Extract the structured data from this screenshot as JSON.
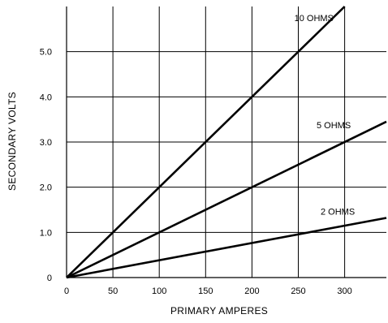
{
  "chart_data": {
    "type": "line",
    "xlabel": "PRIMARY  AMPERES",
    "ylabel": "SECONDARY VOLTS",
    "xlim": [
      0,
      345
    ],
    "ylim": [
      0,
      6
    ],
    "x_ticks": [
      0,
      50,
      100,
      150,
      200,
      250,
      300
    ],
    "y_ticks": [
      0,
      1.0,
      2.0,
      3.0,
      4.0,
      5.0
    ],
    "y_tick_labels": [
      "0",
      "1.0",
      "2.0",
      "3.0",
      "4.0",
      "5.0"
    ],
    "grid": true,
    "series": [
      {
        "name": "10 OHMS",
        "x": [
          0,
          300
        ],
        "y": [
          0,
          6.0
        ]
      },
      {
        "name": "5 OHMS",
        "x": [
          0,
          345
        ],
        "y": [
          0,
          3.45
        ]
      },
      {
        "name": "2 OHMS",
        "x": [
          0,
          345
        ],
        "y": [
          0,
          1.32
        ]
      }
    ]
  }
}
